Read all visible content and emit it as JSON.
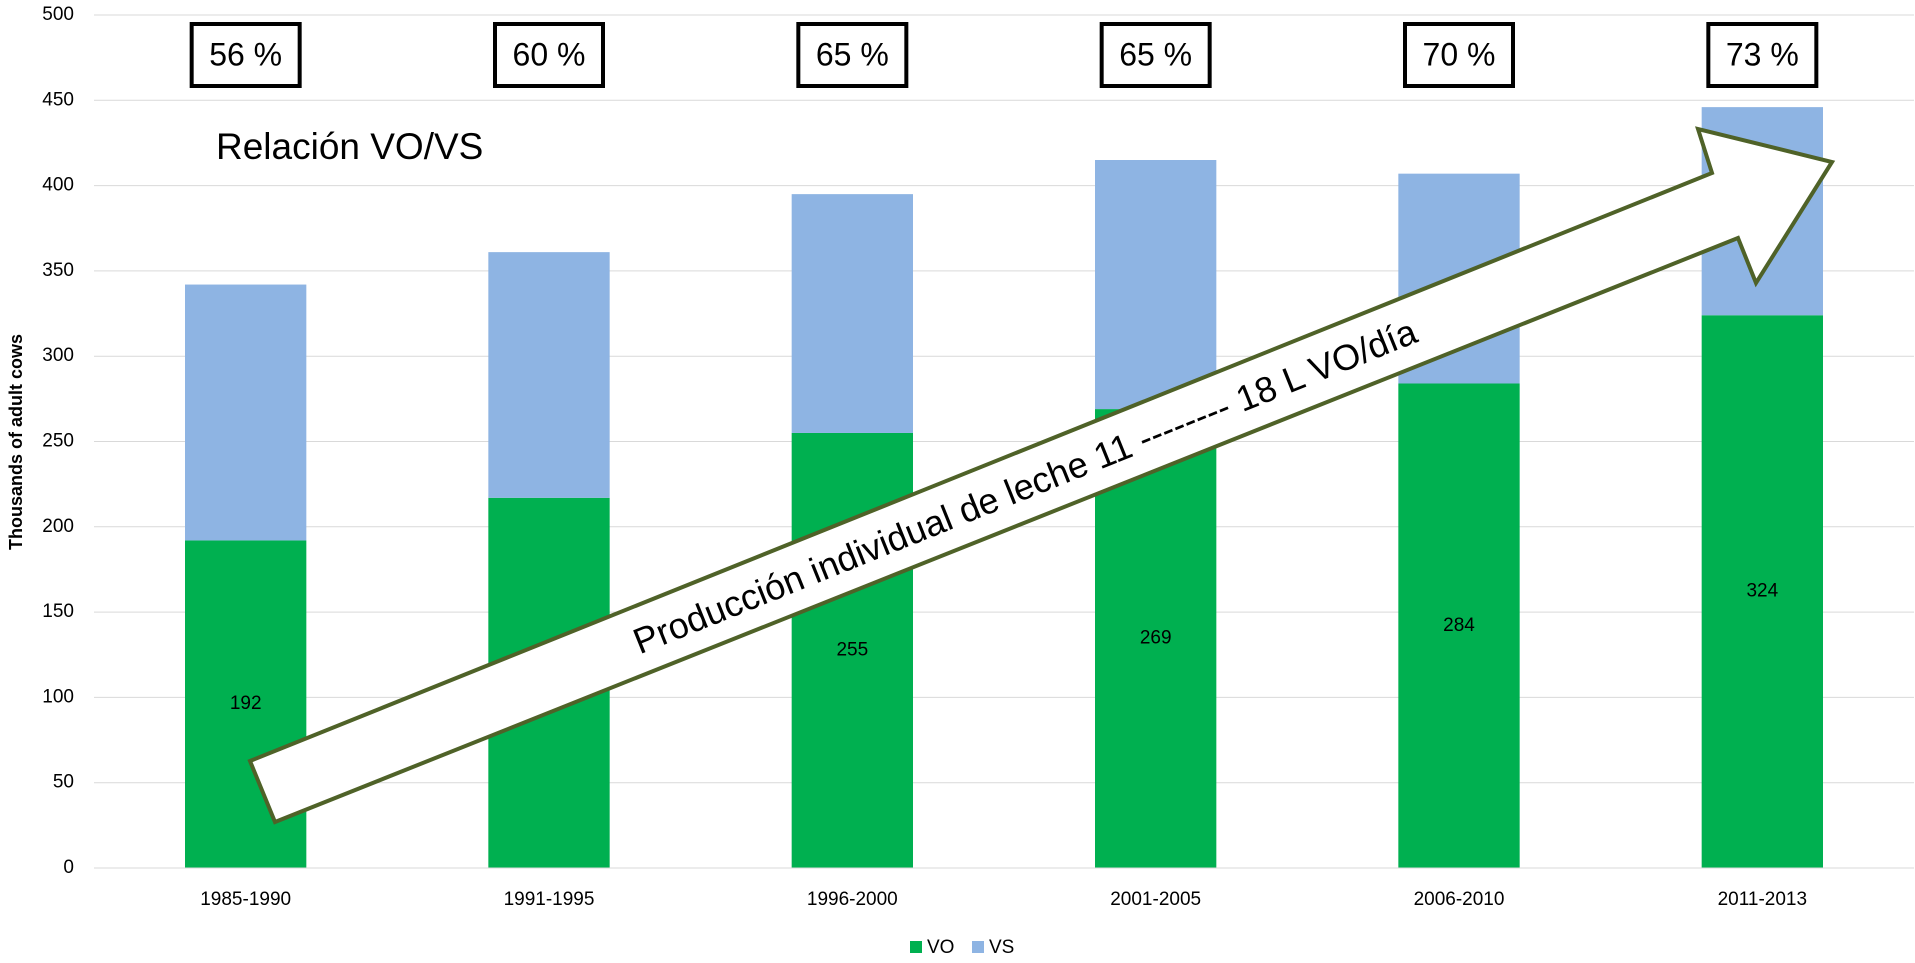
{
  "chart_data": {
    "type": "stacked_bar",
    "title": "Relación VO/VS",
    "y_label": "Thousands of adult cows",
    "categories": [
      "1985-1990",
      "1991-1995",
      "1996-2000",
      "2001-2005",
      "2006-2010",
      "2011-2013"
    ],
    "series": [
      {
        "name": "VO",
        "color": "#00b050",
        "values": [
          192,
          217,
          255,
          269,
          284,
          324
        ]
      },
      {
        "name": "VS",
        "color": "#8eb4e3",
        "values": [
          150,
          144,
          140,
          146,
          123,
          122
        ]
      }
    ],
    "ratio_labels": [
      "56 %",
      "60 %",
      "65 %",
      "65 %",
      "70 %",
      "73 %"
    ],
    "arrow_text": "Producción individual de leche 11 -------- 18 L VO/día",
    "ylim": [
      0,
      500
    ],
    "yticks": [
      0,
      50,
      100,
      150,
      200,
      250,
      300,
      350,
      400,
      450,
      500
    ],
    "grid": true,
    "legend": "bottom"
  }
}
